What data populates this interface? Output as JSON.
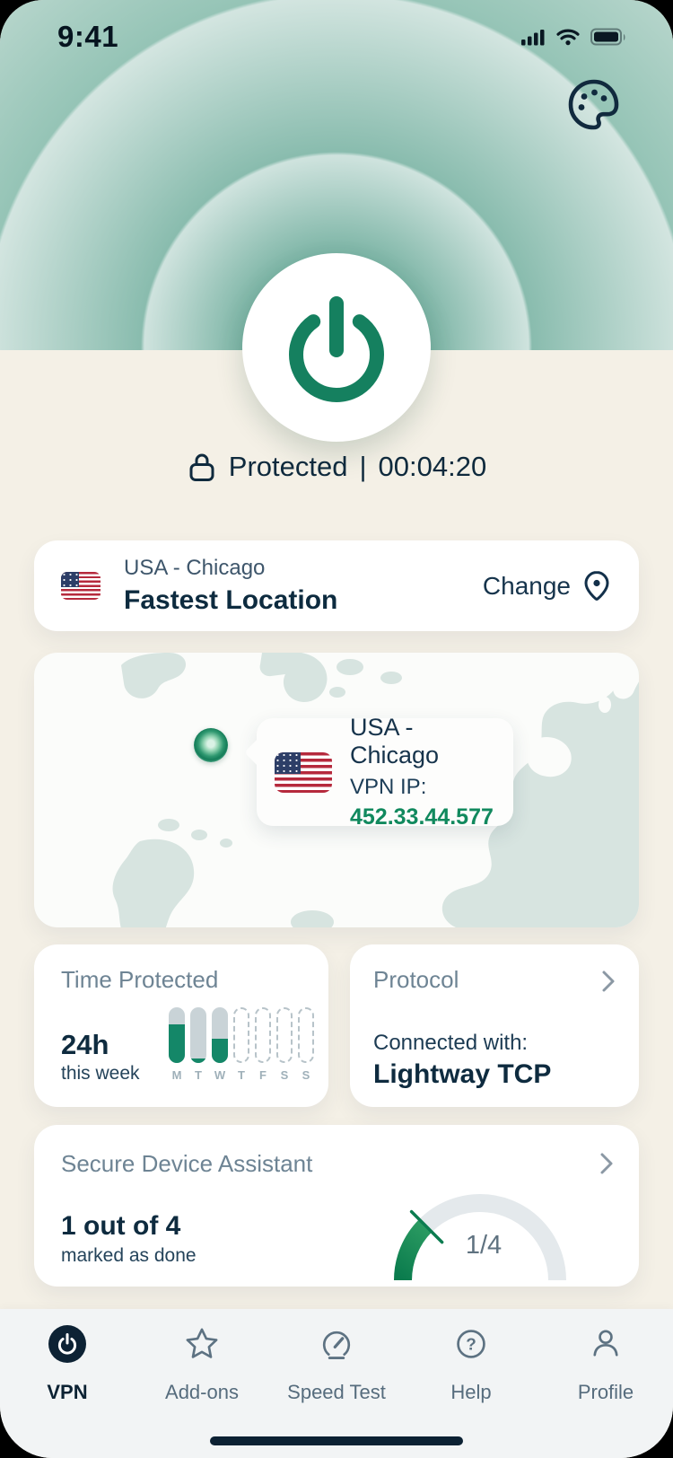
{
  "status_bar": {
    "time": "9:41"
  },
  "connection": {
    "label": "Protected",
    "divider": "|",
    "timer": "00:04:20"
  },
  "location_card": {
    "region": "USA - Chicago",
    "name": "Fastest Location",
    "change_label": "Change"
  },
  "map_card": {
    "tooltip_region": "USA - Chicago",
    "ip_label": "VPN IP:",
    "ip_value": "452.33.44.577"
  },
  "time_protected_card": {
    "title": "Time Protected",
    "value": "24h",
    "subtitle": "this week",
    "chart": {
      "type": "bar",
      "days": [
        "M",
        "T",
        "W",
        "T",
        "F",
        "S",
        "S"
      ],
      "levels": [
        0.7,
        0.08,
        0.44,
        0,
        0,
        0,
        0
      ],
      "filled": [
        true,
        true,
        true,
        false,
        false,
        false,
        false
      ]
    }
  },
  "protocol_card": {
    "title": "Protocol",
    "connected_label": "Connected with:",
    "value": "Lightway TCP"
  },
  "assistant_card": {
    "title": "Secure Device Assistant",
    "value": "1 out of 4",
    "subtitle": "marked as done",
    "gauge": {
      "label": "1/4",
      "progress": 0.25,
      "total": 4,
      "done": 1
    }
  },
  "nav": {
    "items": [
      {
        "label": "VPN",
        "active": true
      },
      {
        "label": "Add-ons",
        "active": false
      },
      {
        "label": "Speed Test",
        "active": false
      },
      {
        "label": "Help",
        "active": false
      },
      {
        "label": "Profile",
        "active": false
      }
    ]
  },
  "colors": {
    "accent_green": "#148768",
    "navy": "#0e2b3f",
    "ip_green": "#11895e",
    "cream_bg": "#f4f0e6",
    "map_land": "#d7e4e0"
  }
}
